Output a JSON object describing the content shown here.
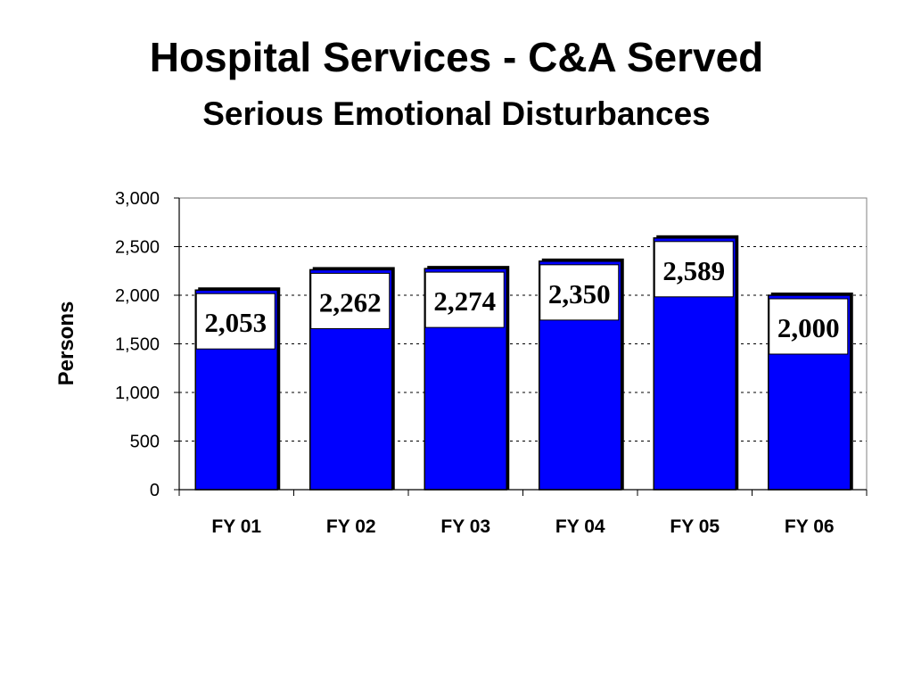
{
  "title": "Hospital Services -  C&A Served",
  "subtitle": "Serious Emotional Disturbances",
  "colors": {
    "bar": "#0000ff",
    "bar_outline": "#000000",
    "label_box": "#ffffff"
  },
  "chart_data": {
    "type": "bar",
    "title": "Hospital Services -  C&A Served",
    "subtitle": "Serious Emotional Disturbances",
    "xlabel": "",
    "ylabel": "Persons",
    "categories": [
      "FY 01",
      "FY 02",
      "FY 03",
      "FY 04",
      "FY 05",
      "FY 06"
    ],
    "values": [
      2053,
      2262,
      2274,
      2350,
      2589,
      2000
    ],
    "data_labels": [
      "2,053",
      "2,262",
      "2,274",
      "2,350",
      "2,589",
      "2,000"
    ],
    "ylim": [
      0,
      3000
    ],
    "yticks": [
      0,
      500,
      1000,
      1500,
      2000,
      2500,
      3000
    ],
    "ytick_labels": [
      "0",
      "500",
      "1,000",
      "1,500",
      "2,000",
      "2,500",
      "3,000"
    ],
    "grid": true,
    "grid_style": "dotted",
    "legend": "none"
  }
}
